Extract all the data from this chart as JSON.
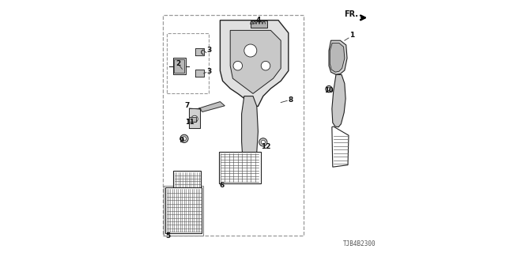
{
  "bg_color": "#ffffff",
  "diagram_color": "#222222",
  "part_number": "TJB4B2300",
  "fr_label": "FR.",
  "label_fontsize": 6.5,
  "label_small_fontsize": 6.0,
  "line_color": "#333333",
  "label_color": "#111111"
}
